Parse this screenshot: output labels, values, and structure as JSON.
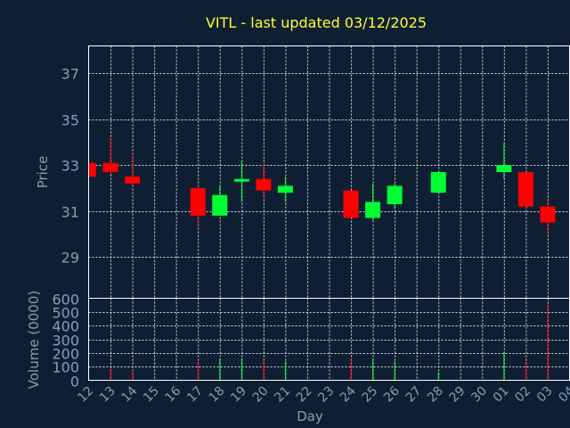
{
  "chart_data": {
    "type": "candlestick",
    "title": "VITL - last updated 03/12/2025",
    "xlabel": "Day",
    "price_panel": {
      "ylabel": "Price",
      "ylim": [
        27.2,
        38.2
      ],
      "yticks": [
        29,
        31,
        33,
        35,
        37
      ],
      "grid": true
    },
    "volume_panel": {
      "ylabel": "Volume (0000)",
      "ylim": [
        0,
        600
      ],
      "yticks": [
        0,
        100,
        200,
        300,
        400,
        500,
        600
      ],
      "grid": true
    },
    "x_ticks": [
      "12",
      "13",
      "14",
      "15",
      "16",
      "17",
      "18",
      "19",
      "20",
      "21",
      "22",
      "23",
      "24",
      "25",
      "26",
      "27",
      "28",
      "29",
      "30",
      "01",
      "02",
      "03",
      "04"
    ],
    "colors": {
      "up": "#00ff33",
      "down": "#ff0000"
    },
    "candles": [
      {
        "day": 0,
        "open": 33.1,
        "high": 33.1,
        "low": 32.5,
        "close": 32.5,
        "volume": 70
      },
      {
        "day": 1,
        "open": 33.1,
        "high": 34.2,
        "low": 32.6,
        "close": 32.7,
        "volume": 90
      },
      {
        "day": 2,
        "open": 32.5,
        "high": 33.5,
        "low": 32.1,
        "close": 32.2,
        "volume": 80
      },
      {
        "day": 5,
        "open": 32.0,
        "high": 32.1,
        "low": 30.3,
        "close": 30.8,
        "volume": 140
      },
      {
        "day": 6,
        "open": 30.8,
        "high": 32.1,
        "low": 30.8,
        "close": 31.7,
        "volume": 160
      },
      {
        "day": 7,
        "open": 32.3,
        "high": 33.2,
        "low": 31.4,
        "close": 32.4,
        "volume": 160
      },
      {
        "day": 8,
        "open": 32.4,
        "high": 33.1,
        "low": 31.6,
        "close": 31.9,
        "volume": 150
      },
      {
        "day": 9,
        "open": 31.8,
        "high": 32.5,
        "low": 31.4,
        "close": 32.1,
        "volume": 140
      },
      {
        "day": 12,
        "open": 31.9,
        "high": 31.9,
        "low": 30.7,
        "close": 30.7,
        "volume": 160
      },
      {
        "day": 13,
        "open": 30.7,
        "high": 32.2,
        "low": 30.6,
        "close": 31.4,
        "volume": 160
      },
      {
        "day": 14,
        "open": 31.3,
        "high": 32.2,
        "low": 31.1,
        "close": 32.1,
        "volume": 140
      },
      {
        "day": 16,
        "open": 31.8,
        "high": 32.7,
        "low": 31.8,
        "close": 32.7,
        "volume": 60
      },
      {
        "day": 19,
        "open": 32.7,
        "high": 34.0,
        "low": 32.4,
        "close": 33.0,
        "volume": 210
      },
      {
        "day": 20,
        "open": 32.7,
        "high": 32.7,
        "low": 31.1,
        "close": 31.2,
        "volume": 140
      },
      {
        "day": 21,
        "open": 31.2,
        "high": 31.6,
        "low": 30.0,
        "close": 30.5,
        "volume": 550
      }
    ]
  }
}
